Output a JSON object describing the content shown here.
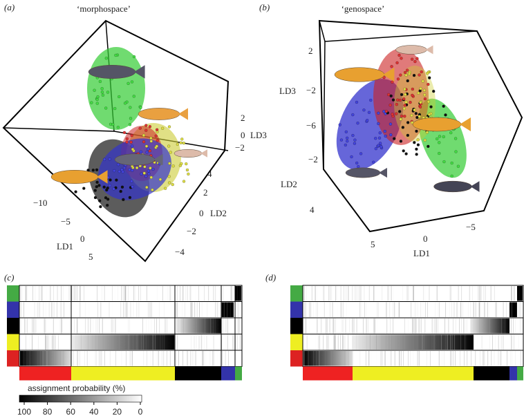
{
  "panels": [
    {
      "label": "(a)",
      "title": "‘morphospace’",
      "axes": [
        {
          "label": "LD3",
          "ticks": [
            "2",
            "0",
            "−2"
          ]
        },
        {
          "label": "LD2",
          "ticks": [
            "4",
            "2",
            "0",
            "−2",
            "−4"
          ]
        },
        {
          "label": "LD1",
          "ticks": [
            "−10",
            "−5",
            "0",
            "5"
          ]
        }
      ]
    },
    {
      "label": "(b)",
      "title": "‘genospace’",
      "axes": [
        {
          "label": "LD3",
          "ticks": [
            "2",
            "−2",
            "−6"
          ]
        },
        {
          "label": "LD2",
          "ticks": [
            "−2",
            "4"
          ]
        },
        {
          "label": "LD1",
          "ticks": [
            "5",
            "0",
            "−5"
          ]
        }
      ]
    }
  ],
  "structure_panels": [
    {
      "label": "(c)"
    },
    {
      "label": "(d)"
    }
  ],
  "legend": {
    "title": "assignment probability (%)",
    "ticks": [
      "100",
      "80",
      "60",
      "40",
      "20",
      "0"
    ]
  }
}
